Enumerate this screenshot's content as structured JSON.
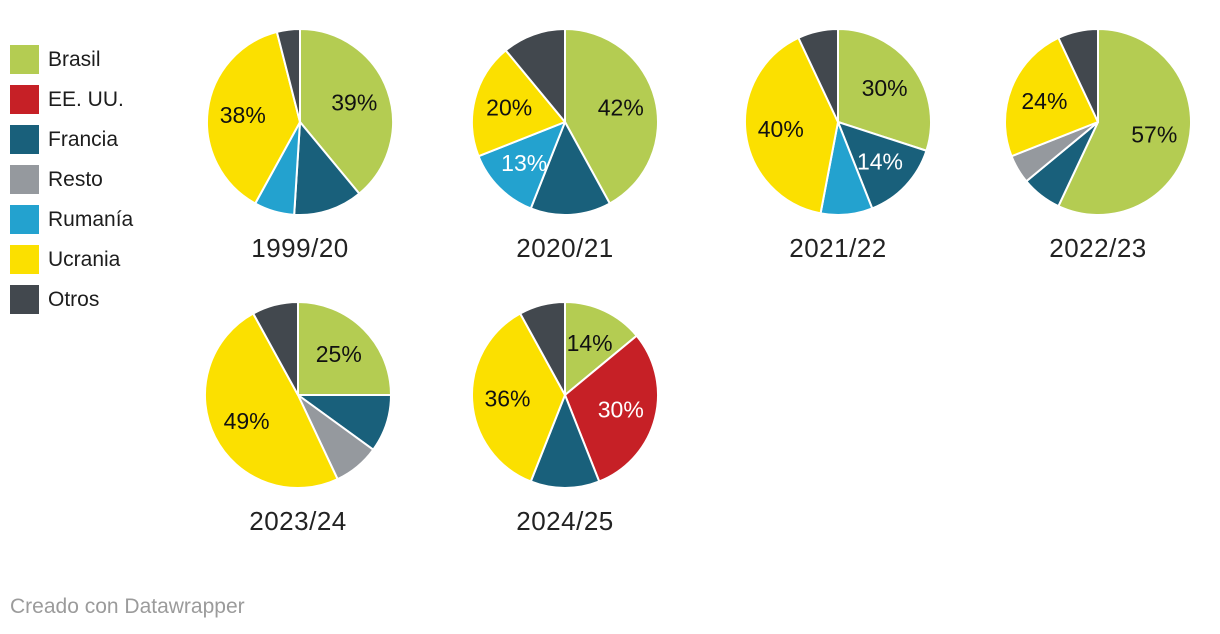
{
  "footer": {
    "credit": "Creado con Datawrapper"
  },
  "colors": {
    "Brasil": "#b4cc52",
    "EE. UU.": "#c62026",
    "Francia": "#19607b",
    "Resto": "#95999e",
    "Rumanía": "#23a2cf",
    "Ucrania": "#fbe000",
    "Otros": "#42484e"
  },
  "chart_data": {
    "type": "pie",
    "layout": "small-multiples",
    "legend_position": "top-left",
    "label_text_dark": "#111111",
    "label_text_light": "#ffffff",
    "categories": [
      "Brasil",
      "EE. UU.",
      "Francia",
      "Resto",
      "Rumanía",
      "Ucrania",
      "Otros"
    ],
    "pies": [
      {
        "title": "1999/20",
        "slices": [
          {
            "name": "Brasil",
            "value": 39,
            "label": "39%",
            "label_color": "#111111"
          },
          {
            "name": "Francia",
            "value": 12
          },
          {
            "name": "Rumanía",
            "value": 7
          },
          {
            "name": "Ucrania",
            "value": 38,
            "label": "38%",
            "label_color": "#111111"
          },
          {
            "name": "Otros",
            "value": 4
          }
        ]
      },
      {
        "title": "2020/21",
        "slices": [
          {
            "name": "Brasil",
            "value": 42,
            "label": "42%",
            "label_color": "#111111"
          },
          {
            "name": "Francia",
            "value": 14
          },
          {
            "name": "Rumanía",
            "value": 13,
            "label": "13%",
            "label_color": "#ffffff"
          },
          {
            "name": "Ucrania",
            "value": 20,
            "label": "20%",
            "label_color": "#111111"
          },
          {
            "name": "Otros",
            "value": 11
          }
        ]
      },
      {
        "title": "2021/22",
        "slices": [
          {
            "name": "Brasil",
            "value": 30,
            "label": "30%",
            "label_color": "#111111"
          },
          {
            "name": "Francia",
            "value": 14,
            "label": "14%",
            "label_color": "#ffffff"
          },
          {
            "name": "Rumanía",
            "value": 9
          },
          {
            "name": "Ucrania",
            "value": 40,
            "label": "40%",
            "label_color": "#111111"
          },
          {
            "name": "Otros",
            "value": 7
          }
        ]
      },
      {
        "title": "2022/23",
        "slices": [
          {
            "name": "Brasil",
            "value": 57,
            "label": "57%",
            "label_color": "#111111"
          },
          {
            "name": "Francia",
            "value": 7
          },
          {
            "name": "Resto",
            "value": 5
          },
          {
            "name": "Ucrania",
            "value": 24,
            "label": "24%",
            "label_color": "#111111"
          },
          {
            "name": "Otros",
            "value": 7
          }
        ]
      },
      {
        "title": "2023/24",
        "slices": [
          {
            "name": "Brasil",
            "value": 25,
            "label": "25%",
            "label_color": "#111111"
          },
          {
            "name": "Francia",
            "value": 10
          },
          {
            "name": "Resto",
            "value": 8
          },
          {
            "name": "Ucrania",
            "value": 49,
            "label": "49%",
            "label_color": "#111111"
          },
          {
            "name": "Otros",
            "value": 8
          }
        ]
      },
      {
        "title": "2024/25",
        "slices": [
          {
            "name": "Brasil",
            "value": 14,
            "label": "14%",
            "label_color": "#111111"
          },
          {
            "name": "EE. UU.",
            "value": 30,
            "label": "30%",
            "label_color": "#ffffff"
          },
          {
            "name": "Francia",
            "value": 12
          },
          {
            "name": "Ucrania",
            "value": 36,
            "label": "36%",
            "label_color": "#111111"
          },
          {
            "name": "Otros",
            "value": 8
          }
        ]
      }
    ]
  }
}
